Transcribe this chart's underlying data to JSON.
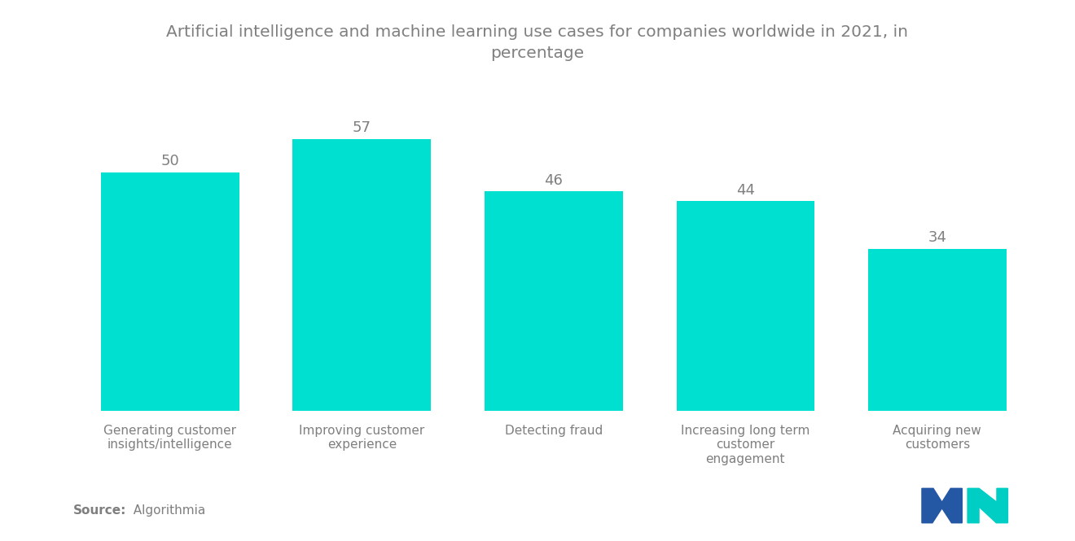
{
  "title": "Artificial intelligence and machine learning use cases for companies worldwide in 2021, in\npercentage",
  "categories": [
    "Generating customer\ninsights/intelligence",
    "Improving customer\nexperience",
    "Detecting fraud",
    "Increasing long term\ncustomer\nengagement",
    "Acquiring new\ncustomers"
  ],
  "values": [
    50,
    57,
    46,
    44,
    34
  ],
  "bar_color": "#00E0D0",
  "background_color": "#ffffff",
  "title_color": "#7f7f7f",
  "label_color": "#7f7f7f",
  "value_color": "#7f7f7f",
  "source_bold": "Source:",
  "source_normal": "  Algorithmia",
  "title_fontsize": 14.5,
  "value_fontsize": 13,
  "category_fontsize": 11,
  "source_fontsize": 11,
  "ylim": [
    0,
    68
  ],
  "bar_width": 0.72
}
